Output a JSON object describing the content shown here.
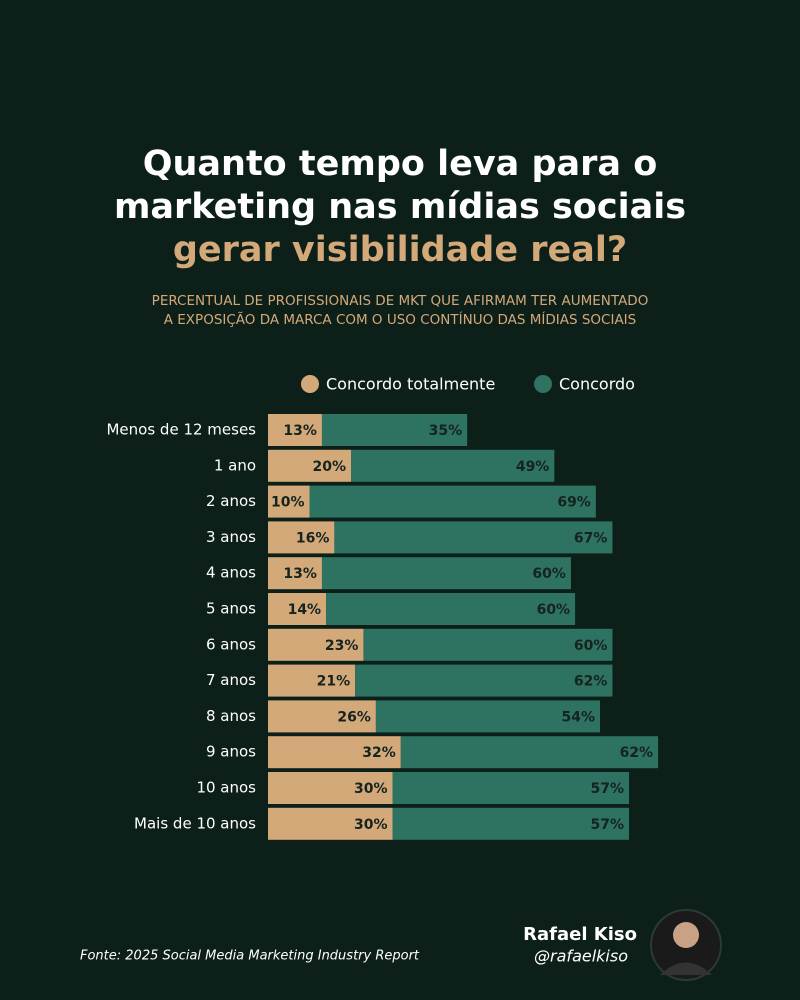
{
  "chart_data": {
    "type": "stacked-bar-horizontal",
    "title": [
      "Quanto tempo leva para o",
      "marketing nas mídias sociais"
    ],
    "title_highlight": "gerar visibilidade real?",
    "subtitle": [
      "PERCENTUAL DE PROFISSIONAIS DE MKT QUE AFIRMAM TER AUMENTADO",
      "A EXPOSIÇÃO DA MARCA COM O USO CONTÍNUO DAS MÍDIAS SOCIAIS"
    ],
    "categories": [
      "Menos de 12 meses",
      "1 ano",
      "2 anos",
      "3 anos",
      "4 anos",
      "5 anos",
      "6 anos",
      "7 anos",
      "8 anos",
      "9 anos",
      "10 anos",
      "Mais de 10 anos"
    ],
    "series": [
      {
        "name": "Concordo totalmente",
        "color": "#d4a97a",
        "values": [
          13,
          20,
          10,
          16,
          13,
          14,
          23,
          21,
          26,
          32,
          30,
          30
        ],
        "value_labels": [
          "13%",
          "20%",
          "10%",
          "16%",
          "13%",
          "14%",
          "23%",
          "21%",
          "26%",
          "32%",
          "30%",
          "30%"
        ]
      },
      {
        "name": "Concordo",
        "color": "#2e7262",
        "values": [
          35,
          49,
          69,
          67,
          60,
          60,
          60,
          62,
          54,
          62,
          57,
          57
        ],
        "value_labels": [
          "35%",
          "49%",
          "69%",
          "67%",
          "60%",
          "60%",
          "60%",
          "62%",
          "54%",
          "62%",
          "57%",
          "57%"
        ]
      }
    ],
    "source": "Fonte: 2025 Social Media Marketing Industry Report",
    "author": "Rafael Kiso",
    "handle": "@rafaelkiso"
  }
}
